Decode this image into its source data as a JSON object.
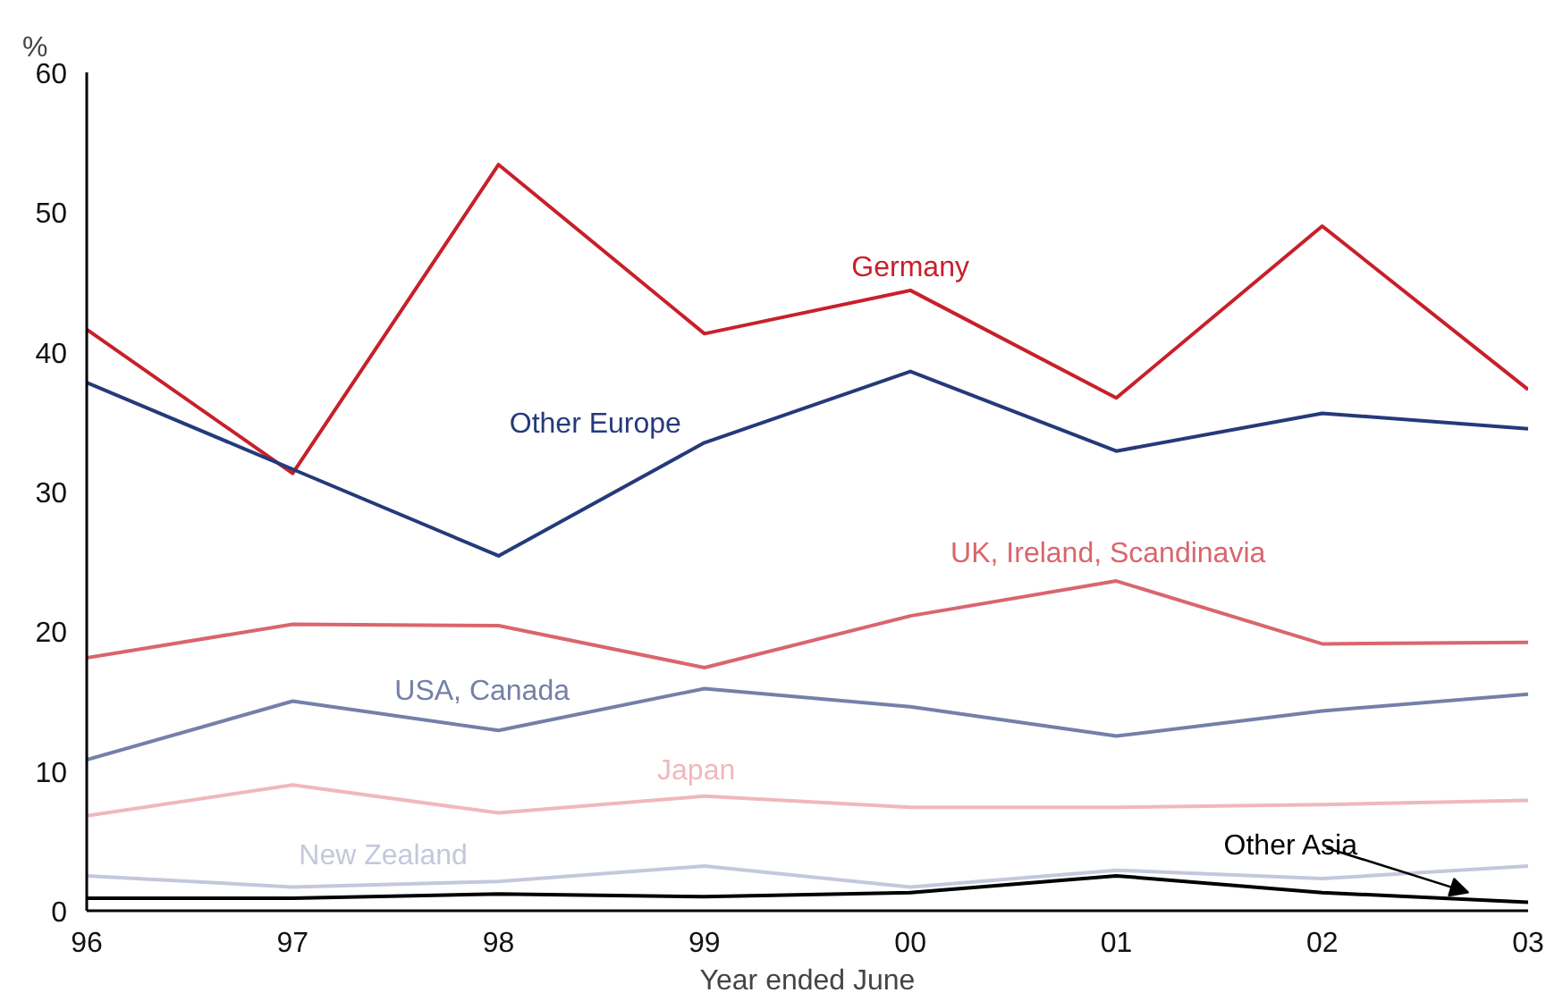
{
  "chart_data": {
    "type": "line",
    "ylabel": "%",
    "xlabel": "Year ended June",
    "categories": [
      "96",
      "97",
      "98",
      "99",
      "00",
      "01",
      "02",
      "03"
    ],
    "ylim": [
      0,
      60
    ],
    "yticks": [
      0,
      10,
      20,
      30,
      40,
      50,
      60
    ],
    "grid": false,
    "legend": false,
    "marker": "none",
    "line_style": "solid",
    "series": [
      {
        "name": "Germany",
        "color": "#c8202a",
        "values": [
          41.6,
          31.3,
          53.4,
          41.3,
          44.4,
          36.7,
          49.0,
          37.3
        ]
      },
      {
        "name": "Other Europe",
        "color": "#243a7a",
        "values": [
          37.8,
          31.6,
          25.4,
          33.5,
          38.6,
          32.9,
          35.6,
          34.5
        ]
      },
      {
        "name": "UK, Ireland, Scandinavia",
        "color": "#d9666c",
        "values": [
          18.1,
          20.5,
          20.4,
          17.4,
          21.1,
          23.6,
          19.1,
          19.2
        ]
      },
      {
        "name": "USA, Canada",
        "color": "#7480a8",
        "values": [
          10.8,
          15.0,
          12.9,
          15.9,
          14.6,
          12.5,
          14.3,
          15.5
        ]
      },
      {
        "name": "Japan",
        "color": "#f0b8bc",
        "values": [
          6.8,
          9.0,
          7.0,
          8.2,
          7.4,
          7.4,
          7.6,
          7.9
        ]
      },
      {
        "name": "New Zealand",
        "color": "#c4c8dc",
        "values": [
          2.5,
          1.7,
          2.1,
          3.2,
          1.7,
          2.9,
          2.3,
          3.2
        ]
      },
      {
        "name": "Other Asia",
        "color": "#000000",
        "values": [
          0.9,
          0.9,
          1.2,
          1.0,
          1.3,
          2.5,
          1.3,
          0.6
        ]
      }
    ]
  }
}
